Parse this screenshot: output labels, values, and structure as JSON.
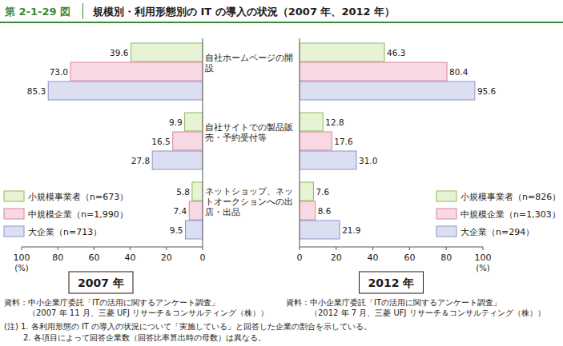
{
  "header": {
    "figure_number": "第 2-1-29 図",
    "title": "規模別・利用形態別の IT の導入の状況（2007 年、2012 年）"
  },
  "chart_data": [
    {
      "type": "bar",
      "orientation": "horizontal",
      "title": "2007 年",
      "categories": [
        "自社ホームページの開設",
        "自社サイトでの製品販売・予約受付等",
        "ネットショップ、ネットオークションへの出店・出品"
      ],
      "series": [
        {
          "name": "小規模事業者（n=673）",
          "color": "#e8f3d6",
          "values": [
            39.6,
            9.9,
            5.8
          ],
          "value_labels": [
            "39.6",
            "9.9",
            "5.8"
          ]
        },
        {
          "name": "中規模企業（n=1,990）",
          "color": "#f8d9e3",
          "values": [
            73.0,
            16.5,
            7.4
          ],
          "value_labels": [
            "73.0",
            "16.5",
            "7.4"
          ]
        },
        {
          "name": "大企業（n=713）",
          "color": "#dcdff2",
          "values": [
            85.3,
            27.8,
            9.5
          ],
          "value_labels": [
            "85.3",
            "27.8",
            "9.5"
          ]
        }
      ],
      "xlim": [
        100,
        0
      ],
      "xticks": [
        100,
        80,
        60,
        40,
        20,
        0
      ],
      "xlabel": "(%)",
      "legend": "lower left",
      "data_labels": true,
      "grid": false,
      "source": [
        "資料：中小企業庁委託「ITの活用に関するアンケート調査」",
        "（2007 年 11 月、三菱 UFJ リサーチ＆コンサルティング（株））"
      ]
    },
    {
      "type": "bar",
      "orientation": "horizontal",
      "title": "2012 年",
      "categories": [
        null,
        null,
        null
      ],
      "series": [
        {
          "name": "小規模事業者（n=826）",
          "color": "#e8f3d6",
          "values": [
            46.3,
            12.8,
            7.6
          ],
          "value_labels": [
            "46.3",
            "12.8",
            "7.6"
          ]
        },
        {
          "name": "中規模企業（n=1,303）",
          "color": "#f8d9e3",
          "values": [
            80.4,
            17.6,
            8.6
          ],
          "value_labels": [
            "80.4",
            "17.6",
            "8.6"
          ]
        },
        {
          "name": "大企業（n=294）",
          "color": "#dcdff2",
          "values": [
            95.6,
            31.0,
            21.9
          ],
          "value_labels": [
            "95.6",
            "31.0",
            "21.9"
          ]
        }
      ],
      "xlim": [
        0,
        100
      ],
      "xticks": [
        0,
        20,
        40,
        60,
        80,
        100
      ],
      "xlabel": "(%)",
      "legend": "lower right",
      "data_labels": true,
      "grid": false,
      "source": [
        "資料：中小企業庁委託「ITの活用に関するアンケート調査」",
        "（2012 年 7 月、三菱 UFJ リサーチ＆コンサルティング（株））"
      ]
    }
  ],
  "notes": [
    "(注) 1. 各利用形態の IT の導入の状況について「実施している」と回答した企業の割合を示している。",
    "2. 各項目によって回答企業数（回答比率算出時の母数）は異なる。"
  ]
}
